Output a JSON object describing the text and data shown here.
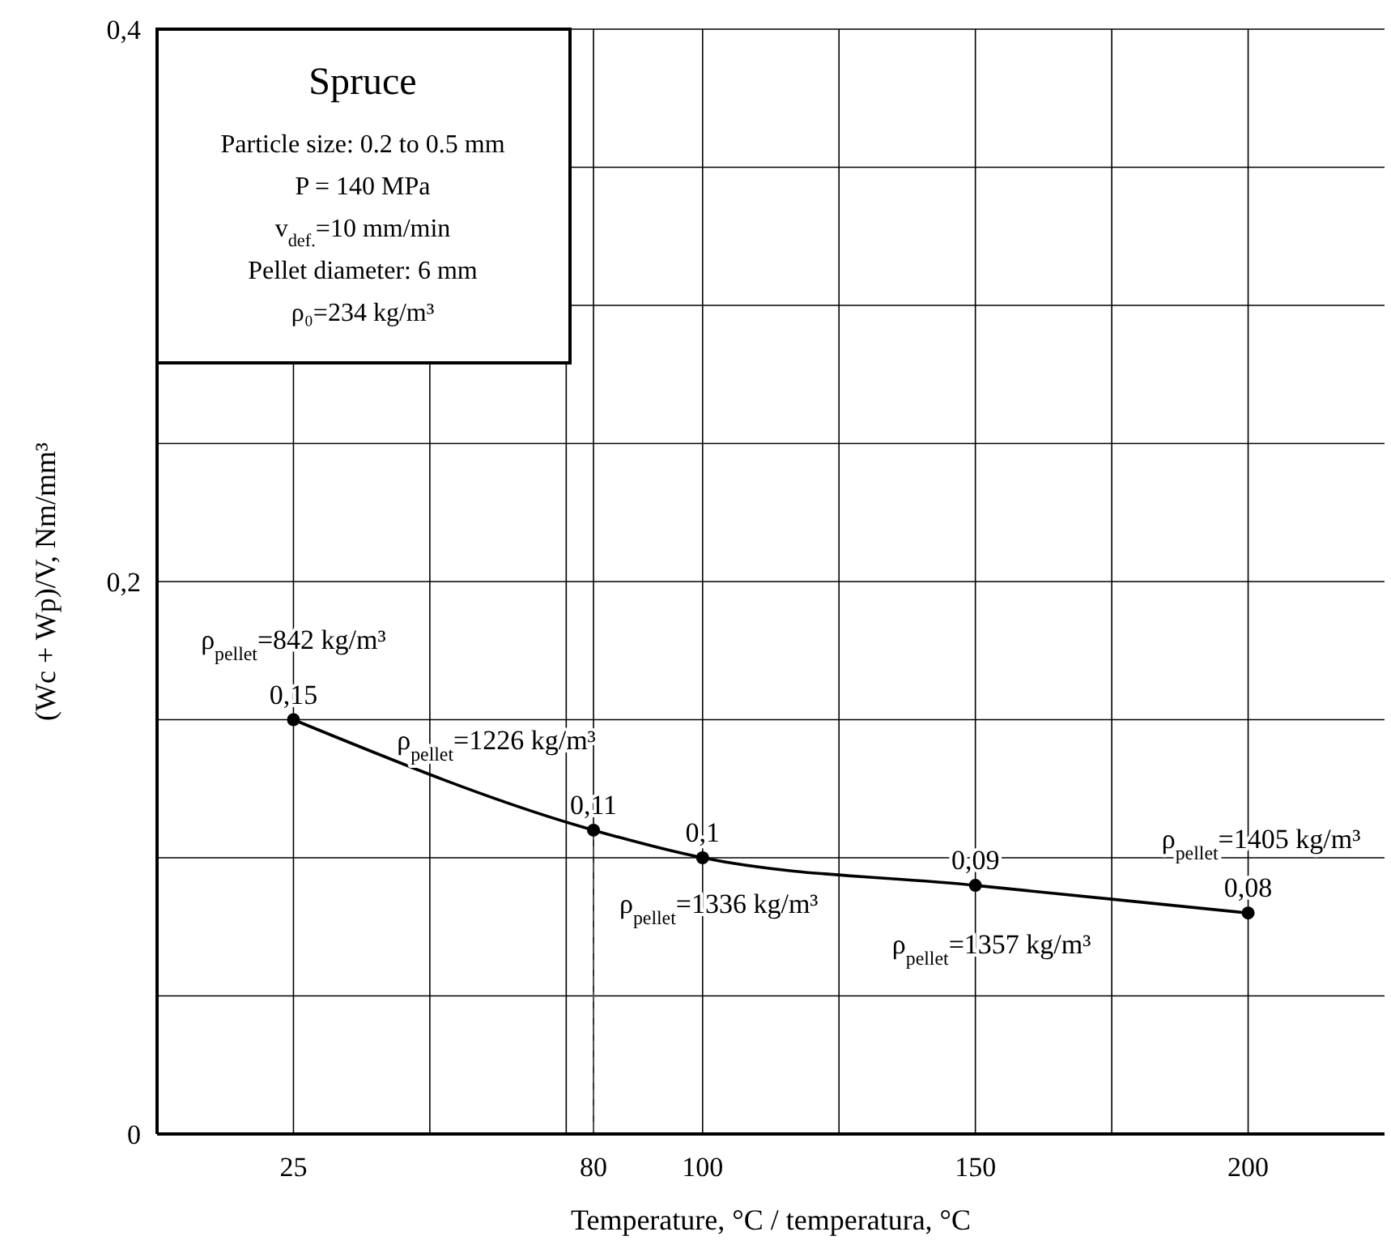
{
  "chart_data": {
    "type": "line",
    "title": "Spruce",
    "xlabel": "Temperature, °C / temperatura, °C",
    "ylabel": "(Wc + Wp)/V, Nm/mm³",
    "x": [
      25,
      80,
      100,
      150,
      200
    ],
    "values": [
      0.15,
      0.11,
      0.1,
      0.09,
      0.08
    ],
    "color": "#000000",
    "value_labels": [
      "0,15",
      "0,11",
      "0,1",
      "0,09",
      "0,08"
    ],
    "marker": "circle",
    "line_style": "solid",
    "grid": true,
    "xlim": [
      0,
      225
    ],
    "xticks": [
      {
        "value": 25,
        "label": "25"
      },
      {
        "value": 50,
        "label": null
      },
      {
        "value": 75,
        "label": null
      },
      {
        "value": 80,
        "label": "80"
      },
      {
        "value": 100,
        "label": "100"
      },
      {
        "value": 125,
        "label": null
      },
      {
        "value": 150,
        "label": "150"
      },
      {
        "value": 175,
        "label": null
      },
      {
        "value": 200,
        "label": "200"
      }
    ],
    "ylim": [
      0,
      0.4
    ],
    "yticks": [
      {
        "value": 0,
        "label": "0"
      },
      {
        "value": 0.05,
        "label": null
      },
      {
        "value": 0.1,
        "label": null
      },
      {
        "value": 0.15,
        "label": null
      },
      {
        "value": 0.2,
        "label": "0,2"
      },
      {
        "value": 0.25,
        "label": null
      },
      {
        "value": 0.3,
        "label": null
      },
      {
        "value": 0.35,
        "label": null
      },
      {
        "value": 0.4,
        "label": "0,4"
      }
    ],
    "ref_lines": [
      {
        "axis": "x",
        "value": 80,
        "line_style": "dashed",
        "color": "#555555"
      }
    ],
    "annotations": [
      "Particle size: 0.2 to 0.5 mm",
      "P = 140 MPa",
      "v$_{def.}$=10 mm/min",
      "Pellet diameter: 6 mm",
      "ρ₀=234 kg/m³",
      {
        "text": "ρ$_{pellet}$=842 kg/m³",
        "x": 25,
        "y": 0.15
      },
      {
        "text": "ρ$_{pellet}$=1226 kg/m³",
        "x": 80,
        "y": 0.11
      },
      {
        "text": "ρ$_{pellet}$=1336 kg/m³",
        "x": 100,
        "y": 0.1
      },
      {
        "text": "ρ$_{pellet}$=1357 kg/m³",
        "x": 150,
        "y": 0.09
      },
      {
        "text": "ρ$_{pellet}$=1405 kg/m³",
        "x": 200,
        "y": 0.08
      }
    ]
  }
}
